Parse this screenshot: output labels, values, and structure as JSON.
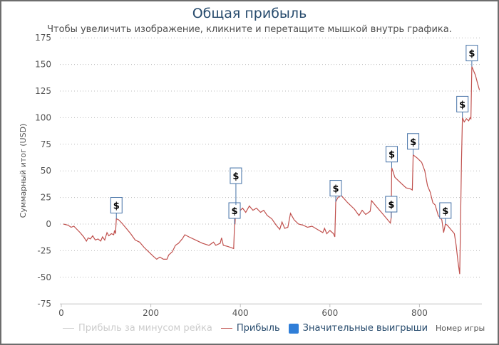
{
  "chart_data": {
    "type": "line",
    "title": "Общая прибыль",
    "subtitle": "Чтобы увеличить изображение, кликните и перетащите мышкой внутрь графика.",
    "xlabel": "Номер игры",
    "ylabel": "Суммарный итог (USD)",
    "xlim": [
      0,
      940
    ],
    "ylim": [
      -75,
      175
    ],
    "x_ticks": [
      0,
      200,
      400,
      600,
      800
    ],
    "y_ticks": [
      175,
      150,
      125,
      100,
      75,
      50,
      25,
      0,
      -25,
      -50,
      -75
    ],
    "grid": true,
    "legend_position": "bottom",
    "legend": [
      {
        "name": "Прибыль за минусом рейка",
        "color": "#cccccc",
        "hidden": true
      },
      {
        "name": "Прибыль",
        "color": "#c0504d"
      },
      {
        "name": "Значительные выигрыши",
        "color": "#2f7ed8"
      }
    ],
    "series": [
      {
        "name": "Прибыль",
        "color": "#c0504d",
        "points": [
          [
            5,
            0
          ],
          [
            15,
            -1
          ],
          [
            22,
            -3
          ],
          [
            28,
            -2
          ],
          [
            35,
            -5
          ],
          [
            42,
            -8
          ],
          [
            50,
            -12
          ],
          [
            56,
            -16
          ],
          [
            60,
            -13
          ],
          [
            65,
            -14
          ],
          [
            70,
            -11
          ],
          [
            76,
            -15
          ],
          [
            82,
            -14
          ],
          [
            88,
            -16
          ],
          [
            92,
            -12
          ],
          [
            97,
            -15
          ],
          [
            102,
            -8
          ],
          [
            106,
            -11
          ],
          [
            112,
            -9
          ],
          [
            117,
            -10
          ],
          [
            119,
            -6
          ],
          [
            121,
            -9
          ],
          [
            123,
            5
          ],
          [
            128,
            4
          ],
          [
            135,
            1
          ],
          [
            145,
            -4
          ],
          [
            155,
            -9
          ],
          [
            165,
            -15
          ],
          [
            175,
            -17
          ],
          [
            185,
            -22
          ],
          [
            195,
            -26
          ],
          [
            205,
            -30
          ],
          [
            213,
            -33
          ],
          [
            220,
            -31
          ],
          [
            228,
            -33
          ],
          [
            236,
            -33
          ],
          [
            240,
            -29
          ],
          [
            248,
            -26
          ],
          [
            255,
            -20
          ],
          [
            262,
            -18
          ],
          [
            270,
            -14
          ],
          [
            276,
            -10
          ],
          [
            285,
            -12
          ],
          [
            300,
            -15
          ],
          [
            315,
            -18
          ],
          [
            330,
            -20
          ],
          [
            340,
            -17
          ],
          [
            345,
            -20
          ],
          [
            355,
            -18
          ],
          [
            358,
            -13
          ],
          [
            362,
            -20
          ],
          [
            372,
            -21
          ],
          [
            385,
            -23
          ],
          [
            387,
            -1
          ],
          [
            388,
            0
          ],
          [
            390,
            18
          ],
          [
            398,
            12
          ],
          [
            405,
            15
          ],
          [
            412,
            11
          ],
          [
            420,
            17
          ],
          [
            428,
            13
          ],
          [
            436,
            15
          ],
          [
            445,
            11
          ],
          [
            452,
            13
          ],
          [
            460,
            8
          ],
          [
            470,
            5
          ],
          [
            480,
            -1
          ],
          [
            488,
            -5
          ],
          [
            493,
            2
          ],
          [
            499,
            -4
          ],
          [
            506,
            -3
          ],
          [
            512,
            10
          ],
          [
            520,
            4
          ],
          [
            530,
            0
          ],
          [
            540,
            -1
          ],
          [
            550,
            -3
          ],
          [
            560,
            -2
          ],
          [
            572,
            -5
          ],
          [
            584,
            -8
          ],
          [
            588,
            -4
          ],
          [
            593,
            -9
          ],
          [
            600,
            -6
          ],
          [
            608,
            -9
          ],
          [
            611,
            -12
          ],
          [
            613,
            21
          ],
          [
            618,
            25
          ],
          [
            625,
            27
          ],
          [
            640,
            20
          ],
          [
            655,
            14
          ],
          [
            665,
            8
          ],
          [
            672,
            13
          ],
          [
            680,
            9
          ],
          [
            690,
            12
          ],
          [
            693,
            22
          ],
          [
            705,
            16
          ],
          [
            715,
            11
          ],
          [
            725,
            6
          ],
          [
            735,
            1
          ],
          [
            737,
            6
          ],
          [
            738,
            53
          ],
          [
            745,
            44
          ],
          [
            755,
            40
          ],
          [
            770,
            34
          ],
          [
            780,
            33
          ],
          [
            784,
            32
          ],
          [
            786,
            65
          ],
          [
            795,
            62
          ],
          [
            805,
            58
          ],
          [
            812,
            50
          ],
          [
            818,
            36
          ],
          [
            824,
            30
          ],
          [
            830,
            20
          ],
          [
            835,
            18
          ],
          [
            842,
            8
          ],
          [
            850,
            4
          ],
          [
            854,
            -8
          ],
          [
            858,
            0
          ],
          [
            862,
            -1
          ],
          [
            870,
            -5
          ],
          [
            878,
            -9
          ],
          [
            882,
            -20
          ],
          [
            886,
            -35
          ],
          [
            890,
            -47
          ],
          [
            894,
            60
          ],
          [
            896,
            100
          ],
          [
            900,
            96
          ],
          [
            905,
            99
          ],
          [
            910,
            97
          ],
          [
            913,
            100
          ],
          [
            915,
            99
          ],
          [
            917,
            148
          ],
          [
            925,
            140
          ],
          [
            930,
            132
          ],
          [
            934,
            126
          ]
        ]
      }
    ],
    "flags": [
      {
        "x": 123,
        "y": 5,
        "label": "$"
      },
      {
        "x": 387,
        "y": 0,
        "label": "$"
      },
      {
        "x": 390,
        "y": 18,
        "label": "$",
        "stack": 1
      },
      {
        "x": 613,
        "y": 21,
        "label": "$"
      },
      {
        "x": 737,
        "y": 6,
        "label": "$"
      },
      {
        "x": 738,
        "y": 53,
        "label": "$"
      },
      {
        "x": 786,
        "y": 65,
        "label": "$"
      },
      {
        "x": 858,
        "y": 0,
        "label": "$"
      },
      {
        "x": 896,
        "y": 100,
        "label": "$"
      },
      {
        "x": 917,
        "y": 148,
        "label": "$"
      }
    ]
  }
}
